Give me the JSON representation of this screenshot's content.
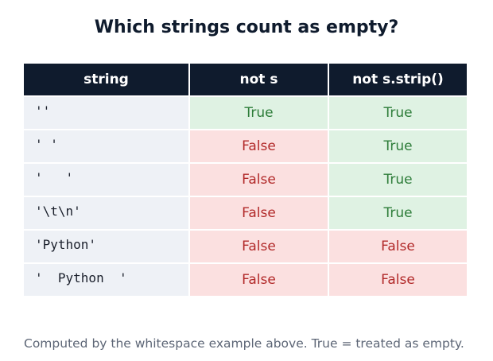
{
  "title": "Which strings count as empty?",
  "table": {
    "headers": [
      "string",
      "not s",
      "not s.strip()"
    ],
    "rows": [
      {
        "string": "''",
        "not_s": "True",
        "not_strip": "True"
      },
      {
        "string": "' '",
        "not_s": "False",
        "not_strip": "True"
      },
      {
        "string": "'   '",
        "not_s": "False",
        "not_strip": "True"
      },
      {
        "string": "'\\t\\n'",
        "not_s": "False",
        "not_strip": "True"
      },
      {
        "string": "'Python'",
        "not_s": "False",
        "not_strip": "False"
      },
      {
        "string": "'  Python  '",
        "not_s": "False",
        "not_strip": "False"
      }
    ]
  },
  "footnote": "Computed by the whitespace example above. True = treated as empty.",
  "colors": {
    "header_bg": "#0f1b2d",
    "true_bg": "#dff2e3",
    "true_text": "#2e7d3a",
    "false_bg": "#fbe0e0",
    "false_text": "#b22a2a",
    "string_bg": "#eef1f6"
  }
}
